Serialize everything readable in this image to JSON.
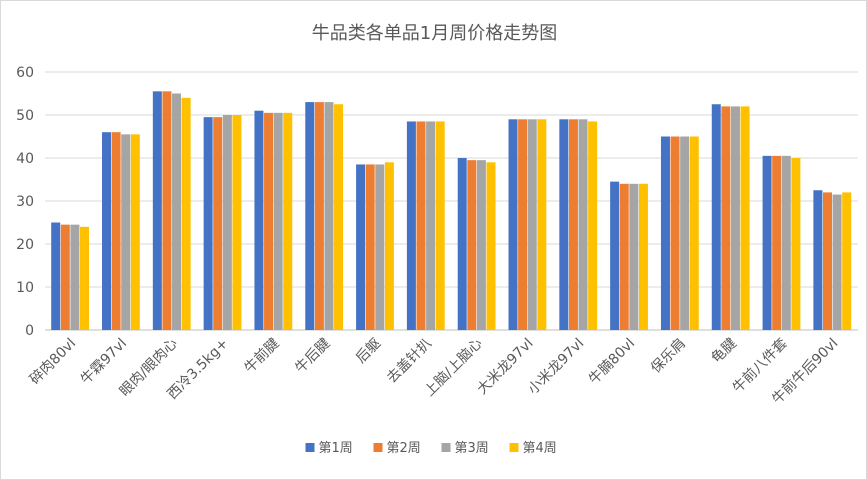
{
  "chart_data": {
    "type": "bar",
    "title": "牛品类各单品1月周价格走势图",
    "xlabel": "",
    "ylabel": "",
    "ylim": [
      0,
      60
    ],
    "yticks": [
      0,
      10,
      20,
      30,
      40,
      50,
      60
    ],
    "grid": true,
    "legend_position": "bottom",
    "categories": [
      "碎肉80vl",
      "牛霖97vl",
      "眼肉/眼肉心",
      "西冷3.5kg+",
      "牛前腱",
      "牛后腱",
      "后躯",
      "去盖针扒",
      "上脑/上脑心",
      "大米龙97vl",
      "小米龙97vl",
      "牛腩80vl",
      "保乐肩",
      "龟腱",
      "牛前八件套",
      "牛前牛后90vl"
    ],
    "series": [
      {
        "name": "第1周",
        "color": "#4472C4",
        "values": [
          25.0,
          46.0,
          55.5,
          49.5,
          51.0,
          53.0,
          38.5,
          48.5,
          40.0,
          49.0,
          49.0,
          34.5,
          45.0,
          52.5,
          40.5,
          32.5
        ]
      },
      {
        "name": "第2周",
        "color": "#ED7D31",
        "values": [
          24.5,
          46.0,
          55.5,
          49.5,
          50.5,
          53.0,
          38.5,
          48.5,
          39.5,
          49.0,
          49.0,
          34.0,
          45.0,
          52.0,
          40.5,
          32.0
        ]
      },
      {
        "name": "第3周",
        "color": "#A5A5A5",
        "values": [
          24.5,
          45.5,
          55.0,
          50.0,
          50.5,
          53.0,
          38.5,
          48.5,
          39.5,
          49.0,
          49.0,
          34.0,
          45.0,
          52.0,
          40.5,
          31.5
        ]
      },
      {
        "name": "第4周",
        "color": "#FFC000",
        "values": [
          24.0,
          45.5,
          54.0,
          50.0,
          50.5,
          52.5,
          39.0,
          48.5,
          39.0,
          49.0,
          48.5,
          34.0,
          45.0,
          52.0,
          40.0,
          32.0
        ]
      }
    ]
  }
}
